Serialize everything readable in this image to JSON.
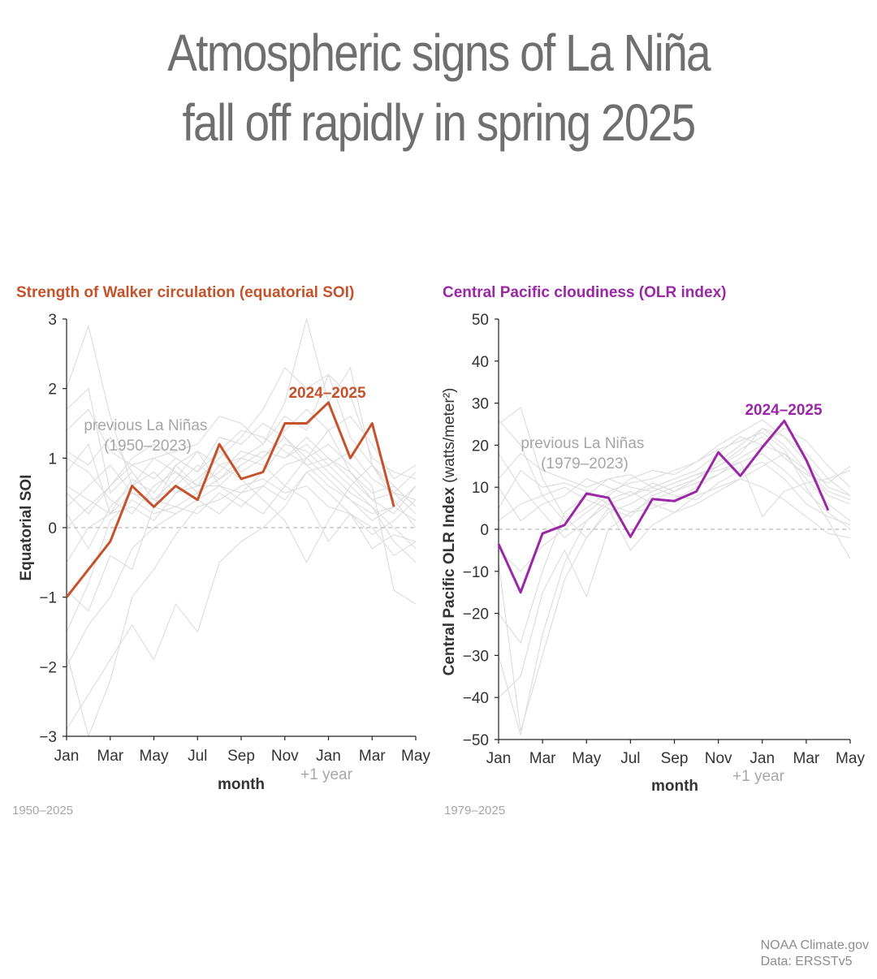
{
  "headline": {
    "line1": "Atmospheric signs of La Niña",
    "line2": "fall off rapidly in spring 2025"
  },
  "credit": {
    "source": "NOAA Climate.gov",
    "data": "Data: ERSSTv5"
  },
  "colors": {
    "soi": "#c5522a",
    "olr": "#9b27a6",
    "background_lines": "#dcdcdc",
    "zero_line": "#bbbbbb"
  },
  "chart_data": [
    {
      "type": "line",
      "title": "Strength of Walker circulation (equatorial SOI)",
      "ylabel": "Equatorial SOI",
      "xlabel": "month",
      "x_sublabel": "+1 year",
      "ylim": [
        -3,
        3
      ],
      "yticks": [
        3,
        2,
        1,
        0,
        -1,
        -2,
        -3
      ],
      "ytick_labels": [
        "3",
        "2",
        "1",
        "0",
        "−1",
        "−2",
        "−3"
      ],
      "xticks": [
        "Jan",
        "Mar",
        "May",
        "Jul",
        "Sep",
        "Nov",
        "Jan",
        "Mar",
        "May"
      ],
      "period": "1950–2025",
      "annotation": "previous La Niñas\n(1950–2023)",
      "highlight": {
        "name": "2024–2025",
        "values": [
          -1.0,
          -0.6,
          -0.2,
          0.6,
          0.3,
          0.6,
          0.4,
          1.2,
          0.7,
          0.8,
          1.5,
          1.5,
          1.8,
          1.0,
          1.5,
          0.3
        ]
      },
      "background_series": [
        [
          1.7,
          2.0,
          0.5,
          0.8,
          0.4,
          0.7,
          1.1,
          0.9,
          1.0,
          1.2,
          1.6,
          1.4,
          2.2,
          1.3,
          0.9,
          0.6,
          0.3
        ],
        [
          2.0,
          2.9,
          1.6,
          0.6,
          1.0,
          1.1,
          1.2,
          1.6,
          1.5,
          1.2,
          1.8,
          3.0,
          1.8,
          2.3,
          0.9,
          0.5,
          0.2
        ],
        [
          0.8,
          1.2,
          0.2,
          0.7,
          0.5,
          0.9,
          0.6,
          0.8,
          1.1,
          1.0,
          1.3,
          1.0,
          1.4,
          0.8,
          0.4,
          0.2,
          0.6
        ],
        [
          -1.5,
          -0.8,
          0.1,
          0.4,
          0.2,
          0.3,
          0.5,
          0.7,
          0.9,
          1.1,
          1.0,
          1.2,
          0.9,
          1.1,
          0.7,
          0.5,
          0.4
        ],
        [
          -2.0,
          -1.4,
          -1.0,
          -0.3,
          0.0,
          0.2,
          0.4,
          0.6,
          0.5,
          0.8,
          1.2,
          1.1,
          0.8,
          0.5,
          0.3,
          0.0,
          -0.3
        ],
        [
          -2.9,
          -2.4,
          -1.9,
          -1.4,
          -1.9,
          -1.1,
          -1.5,
          -0.5,
          -0.2,
          0.0,
          0.3,
          0.8,
          0.9,
          0.6,
          0.3,
          -0.2,
          -0.5
        ],
        [
          0.5,
          0.2,
          0.6,
          0.9,
          0.7,
          1.0,
          0.8,
          1.3,
          1.2,
          1.5,
          1.3,
          0.9,
          0.6,
          0.4,
          0.1,
          0.3,
          0.6
        ],
        [
          0.3,
          0.6,
          0.9,
          0.5,
          0.4,
          0.6,
          0.9,
          0.7,
          1.0,
          0.9,
          0.6,
          0.4,
          -0.2,
          0.2,
          -0.3,
          -0.1,
          -0.2
        ],
        [
          1.0,
          0.8,
          0.4,
          0.2,
          0.6,
          0.8,
          0.5,
          0.9,
          0.7,
          0.4,
          0.1,
          -0.5,
          0.1,
          0.6,
          0.9,
          0.4,
          0.0
        ],
        [
          -0.5,
          0.0,
          0.2,
          0.3,
          0.1,
          0.5,
          0.7,
          1.0,
          1.3,
          1.7,
          2.3,
          2.0,
          2.2,
          1.9,
          1.0,
          0.8,
          0.7
        ],
        [
          1.4,
          1.7,
          1.1,
          0.9,
          1.0,
          0.8,
          0.6,
          0.6,
          0.9,
          1.1,
          1.0,
          1.3,
          1.0,
          0.7,
          0.4,
          0.5,
          0.8
        ],
        [
          0.6,
          0.4,
          0.2,
          0.5,
          0.3,
          0.2,
          0.4,
          0.2,
          0.5,
          0.6,
          0.9,
          1.0,
          1.2,
          0.9,
          0.6,
          -0.9,
          -1.1
        ],
        [
          -1.8,
          -3.0,
          -2.2,
          -1.0,
          -0.6,
          -0.1,
          0.3,
          0.4,
          0.6,
          0.7,
          0.5,
          0.6,
          0.3,
          0.2,
          -0.1,
          0.1,
          0.4
        ],
        [
          0.2,
          -0.3,
          0.3,
          0.6,
          0.8,
          0.5,
          0.6,
          1.1,
          0.8,
          1.0,
          1.4,
          1.7,
          1.4,
          1.6,
          1.2,
          0.7,
          0.9
        ],
        [
          1.1,
          0.9,
          1.3,
          0.8,
          0.4,
          0.3,
          0.2,
          0.5,
          0.3,
          0.6,
          0.4,
          0.8,
          0.5,
          0.2,
          0.0,
          -0.4,
          -0.2
        ],
        [
          -0.9,
          -1.2,
          -0.4,
          -0.6,
          0.3,
          0.9,
          1.1,
          0.6,
          0.4,
          0.2,
          0.6,
          1.0,
          0.7,
          0.4,
          0.2,
          0.3,
          0.1
        ],
        [
          0.0,
          0.3,
          0.6,
          1.0,
          1.2,
          1.0,
          0.8,
          1.1,
          1.4,
          1.3,
          1.1,
          0.9,
          1.0,
          0.8,
          0.5,
          0.6,
          0.3
        ]
      ]
    },
    {
      "type": "line",
      "title": "Central Pacific cloudiness (OLR index)",
      "ylabel": "Central Pacific OLR Index (watts/meter²)",
      "xlabel": "month",
      "x_sublabel": "+1 year",
      "ylim": [
        -50,
        50
      ],
      "yticks": [
        50,
        40,
        30,
        20,
        10,
        0,
        -10,
        -20,
        -30,
        -40,
        -50
      ],
      "ytick_labels": [
        "50",
        "40",
        "30",
        "20",
        "10",
        "0",
        "−10",
        "−20",
        "−30",
        "−40",
        "−50"
      ],
      "xticks": [
        "Jan",
        "Mar",
        "May",
        "Jul",
        "Sep",
        "Nov",
        "Jan",
        "Mar",
        "May"
      ],
      "period": "1979–2025",
      "annotation": "previous La Niñas\n(1979–2023)",
      "highlight": {
        "name": "2024–2025",
        "values": [
          -3.5,
          -15.0,
          -1.0,
          1.0,
          8.5,
          7.5,
          -1.8,
          7.2,
          6.7,
          9.0,
          18.3,
          12.7,
          19.5,
          25.8,
          16.5,
          4.5
        ]
      },
      "background_series": [
        [
          -8,
          -48,
          -30,
          -12,
          -2,
          5,
          3,
          8,
          10,
          12,
          16,
          20,
          24,
          22,
          16,
          10,
          8
        ],
        [
          -30,
          -49,
          -25,
          -8,
          2,
          6,
          8,
          10,
          12,
          14,
          18,
          22,
          20,
          18,
          12,
          6,
          2
        ],
        [
          25,
          29,
          12,
          3,
          -2,
          4,
          6,
          9,
          11,
          13,
          15,
          18,
          24,
          20,
          14,
          8,
          6
        ],
        [
          26,
          20,
          8,
          2,
          5,
          9,
          11,
          12,
          14,
          16,
          19,
          21,
          23,
          19,
          10,
          2,
          -7
        ],
        [
          -40,
          -35,
          -15,
          -5,
          -16,
          0,
          4,
          7,
          9,
          11,
          13,
          16,
          18,
          14,
          9,
          4,
          0
        ],
        [
          10,
          2,
          6,
          8,
          12,
          10,
          8,
          11,
          9,
          12,
          15,
          19,
          22,
          17,
          13,
          11,
          15
        ],
        [
          -20,
          -27,
          -10,
          4,
          8,
          12,
          13,
          10,
          8,
          7,
          11,
          14,
          16,
          12,
          6,
          3,
          1
        ],
        [
          5,
          14,
          10,
          11,
          9,
          6,
          4,
          5,
          7,
          10,
          13,
          17,
          20,
          24,
          21,
          15,
          10
        ],
        [
          18,
          10,
          4,
          -2,
          2,
          7,
          9,
          6,
          4,
          8,
          10,
          12,
          15,
          18,
          14,
          9,
          7
        ],
        [
          -5,
          -10,
          -4,
          0,
          4,
          8,
          12,
          14,
          13,
          16,
          20,
          23,
          26,
          22,
          18,
          12,
          8
        ],
        [
          2,
          6,
          8,
          10,
          7,
          5,
          -5,
          1,
          4,
          6,
          9,
          12,
          10,
          7,
          3,
          -1,
          -2
        ],
        [
          12,
          18,
          14,
          12,
          10,
          12,
          10,
          9,
          11,
          13,
          14,
          16,
          3,
          9,
          11,
          12,
          14
        ]
      ]
    }
  ]
}
